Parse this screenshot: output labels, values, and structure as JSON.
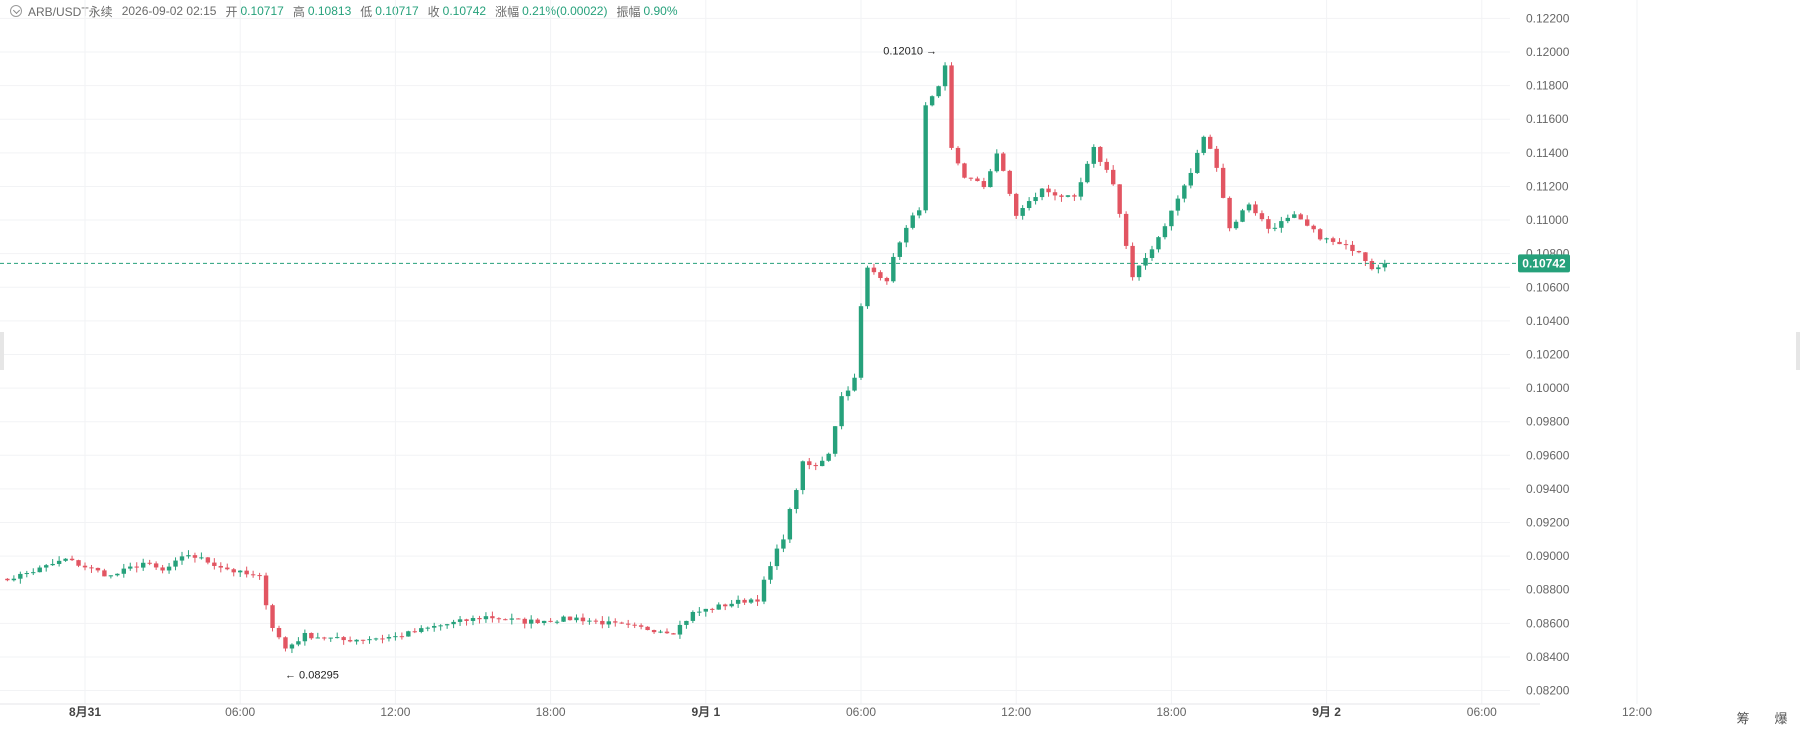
{
  "header": {
    "symbol": "ARB/USDT永续",
    "datetime": "2026-09-02 02:15",
    "open_label": "开",
    "open": "0.10717",
    "high_label": "高",
    "high": "0.10813",
    "low_label": "低",
    "low": "0.10717",
    "close_label": "收",
    "close": "0.10742",
    "change_label": "涨幅",
    "change": "0.21%(0.00022)",
    "amplitude_label": "振幅",
    "amplitude": "0.90%"
  },
  "corner_buttons": [
    "筹",
    "爆"
  ],
  "colors": {
    "up": "#26a17b",
    "down": "#e25562",
    "grid": "#f2f3f5",
    "axis_text": "#666666",
    "last_price": "#26a17b"
  },
  "chart_data": {
    "type": "candlestick",
    "interval": "15m",
    "y_ticks": [
      0.082,
      0.084,
      0.086,
      0.088,
      0.09,
      0.092,
      0.094,
      0.096,
      0.098,
      0.1,
      0.102,
      0.104,
      0.106,
      0.108,
      0.11,
      0.112,
      0.114,
      0.116,
      0.118,
      0.12,
      0.122
    ],
    "y_tick_labels": [
      "0.08200",
      "0.08400",
      "0.08600",
      "0.08800",
      "0.09000",
      "0.09200",
      "0.09400",
      "0.09600",
      "0.09800",
      "0.10000",
      "0.10200",
      "0.10400",
      "0.10600",
      "0.10800",
      "0.11000",
      "0.11200",
      "0.11400",
      "0.11600",
      "0.11800",
      "0.12000",
      "0.12200"
    ],
    "ylim": [
      0.0812,
      0.1225
    ],
    "x_ticks": [
      {
        "label": "8月31",
        "bold": true,
        "t": "2026-08-31 00:00"
      },
      {
        "label": "06:00",
        "bold": false,
        "t": "2026-08-31 06:00"
      },
      {
        "label": "12:00",
        "bold": false,
        "t": "2026-08-31 12:00"
      },
      {
        "label": "18:00",
        "bold": false,
        "t": "2026-08-31 18:00"
      },
      {
        "label": "9月 1",
        "bold": true,
        "t": "2026-09-01 00:00"
      },
      {
        "label": "06:00",
        "bold": false,
        "t": "2026-09-01 06:00"
      },
      {
        "label": "12:00",
        "bold": false,
        "t": "2026-09-01 12:00"
      },
      {
        "label": "18:00",
        "bold": false,
        "t": "2026-09-01 18:00"
      },
      {
        "label": "9月 2",
        "bold": true,
        "t": "2026-09-02 00:00"
      },
      {
        "label": "06:00",
        "bold": false,
        "t": "2026-09-02 06:00"
      },
      {
        "label": "12:00",
        "bold": false,
        "t": "2026-09-02 12:00"
      }
    ],
    "last_price": 0.10742,
    "last_price_label": "0.10742",
    "max_marker": {
      "label": "0.12010",
      "value": 0.1201,
      "t": "2026-09-01 09:15"
    },
    "min_marker": {
      "label": "0.08295",
      "value": 0.08295,
      "t": "2026-08-31 07:30"
    },
    "keyframes": [
      [
        "2026-08-30 20:30",
        0.0884
      ],
      [
        "2026-08-30 22:00",
        0.0891
      ],
      [
        "2026-08-30 23:15",
        0.0898
      ],
      [
        "2026-08-31 01:00",
        0.0888
      ],
      [
        "2026-08-31 02:15",
        0.0896
      ],
      [
        "2026-08-31 03:00",
        0.0891
      ],
      [
        "2026-08-31 04:00",
        0.0901
      ],
      [
        "2026-08-31 05:45",
        0.0891
      ],
      [
        "2026-08-31 06:45",
        0.0887
      ],
      [
        "2026-08-31 07:15",
        0.0858
      ],
      [
        "2026-08-31 07:45",
        0.0845
      ],
      [
        "2026-08-31 08:30",
        0.0853
      ],
      [
        "2026-08-31 10:00",
        0.085
      ],
      [
        "2026-08-31 12:00",
        0.0852
      ],
      [
        "2026-08-31 13:30",
        0.0858
      ],
      [
        "2026-08-31 15:30",
        0.0864
      ],
      [
        "2026-08-31 17:00",
        0.0861
      ],
      [
        "2026-08-31 19:00",
        0.0863
      ],
      [
        "2026-08-31 21:00",
        0.0858
      ],
      [
        "2026-08-31 22:45",
        0.0855
      ],
      [
        "2026-08-31 23:30",
        0.0866
      ],
      [
        "2026-09-01 01:00",
        0.0872
      ],
      [
        "2026-09-01 02:00",
        0.0875
      ],
      [
        "2026-09-01 03:00",
        0.0912
      ],
      [
        "2026-09-01 03:45",
        0.0955
      ],
      [
        "2026-09-01 04:15",
        0.0953
      ],
      [
        "2026-09-01 04:45",
        0.0962
      ],
      [
        "2026-09-01 05:15",
        0.0995
      ],
      [
        "2026-09-01 05:45",
        0.1005
      ],
      [
        "2026-09-01 06:00",
        0.1048
      ],
      [
        "2026-09-01 06:15",
        0.1071
      ],
      [
        "2026-09-01 07:00",
        0.1065
      ],
      [
        "2026-09-01 07:30",
        0.1088
      ],
      [
        "2026-09-01 08:15",
        0.1108
      ],
      [
        "2026-09-01 08:30",
        0.1167
      ],
      [
        "2026-09-01 09:00",
        0.1178
      ],
      [
        "2026-09-01 09:15",
        0.119
      ],
      [
        "2026-09-01 09:30",
        0.1142
      ],
      [
        "2026-09-01 10:00",
        0.1126
      ],
      [
        "2026-09-01 10:45",
        0.112
      ],
      [
        "2026-09-01 11:15",
        0.114
      ],
      [
        "2026-09-01 12:00",
        0.1103
      ],
      [
        "2026-09-01 13:00",
        0.1118
      ],
      [
        "2026-09-01 14:15",
        0.1112
      ],
      [
        "2026-09-01 15:00",
        0.1142
      ],
      [
        "2026-09-01 15:45",
        0.1123
      ],
      [
        "2026-09-01 16:30",
        0.1065
      ],
      [
        "2026-09-01 17:30",
        0.109
      ],
      [
        "2026-09-01 18:00",
        0.1105
      ],
      [
        "2026-09-01 18:45",
        0.1128
      ],
      [
        "2026-09-01 19:15",
        0.115
      ],
      [
        "2026-09-01 19:45",
        0.1133
      ],
      [
        "2026-09-01 20:15",
        0.1095
      ],
      [
        "2026-09-01 21:00",
        0.111
      ],
      [
        "2026-09-01 21:45",
        0.1095
      ],
      [
        "2026-09-01 22:45",
        0.1102
      ],
      [
        "2026-09-01 23:45",
        0.109
      ],
      [
        "2026-09-02 00:30",
        0.1085
      ],
      [
        "2026-09-02 01:15",
        0.1082
      ],
      [
        "2026-09-02 01:45",
        0.1072
      ],
      [
        "2026-09-02 02:15",
        0.10742
      ]
    ]
  }
}
